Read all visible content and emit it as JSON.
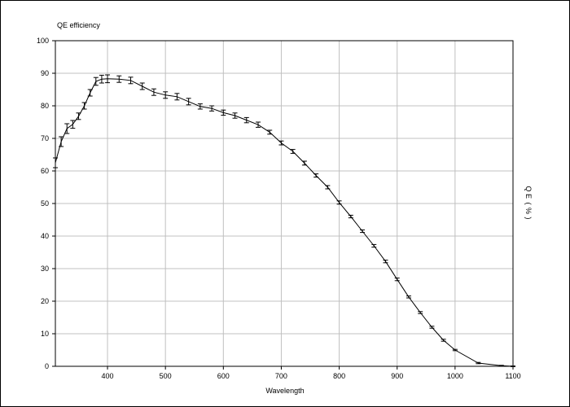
{
  "chart_data": {
    "type": "line",
    "title": "QE efficiency",
    "xlabel": "Wavelength",
    "ylabel": "QE (%)",
    "xlim": [
      310,
      1100
    ],
    "ylim": [
      0,
      100
    ],
    "xticks": [
      400,
      500,
      600,
      700,
      800,
      900,
      1000,
      1100
    ],
    "yticks": [
      0,
      10,
      20,
      30,
      40,
      50,
      60,
      70,
      80,
      90,
      100
    ],
    "grid": true,
    "series": [
      {
        "x": [
          310,
          320,
          330,
          340,
          350,
          360,
          370,
          380,
          390,
          400,
          420,
          440,
          460,
          480,
          500,
          520,
          540,
          560,
          580,
          600,
          620,
          640,
          660,
          680,
          700,
          720,
          740,
          760,
          780,
          800,
          820,
          840,
          860,
          880,
          900,
          920,
          940,
          960,
          980,
          1000,
          1040,
          1080,
          1100
        ],
        "y": [
          62.5,
          69,
          73,
          74.3,
          76.8,
          80,
          84,
          87.5,
          88.2,
          88.3,
          88.2,
          87.8,
          86,
          84.2,
          83.3,
          82.8,
          81.3,
          79.8,
          79.2,
          77.9,
          77.0,
          75.6,
          74.2,
          71.9,
          68.6,
          66.0,
          62.4,
          58.6,
          55.0,
          50.3,
          46.0,
          41.5,
          37.0,
          32.2,
          26.7,
          21.3,
          16.5,
          12.0,
          8.0,
          5.0,
          1.0,
          0.2,
          0.0
        ],
        "err": [
          1.5,
          1.5,
          1.5,
          1.2,
          1.0,
          1.0,
          1.0,
          1.2,
          1.2,
          1.2,
          1.0,
          1.0,
          1.0,
          1.0,
          1.0,
          1.0,
          1.0,
          0.8,
          0.8,
          0.8,
          0.8,
          0.8,
          0.8,
          0.6,
          0.6,
          0.6,
          0.6,
          0.5,
          0.5,
          0.5,
          0.4,
          0.4,
          0.4,
          0.4,
          0.4,
          0.3,
          0.3,
          0.3,
          0.3,
          0.2,
          0.2,
          0.1,
          0.1
        ]
      }
    ]
  }
}
